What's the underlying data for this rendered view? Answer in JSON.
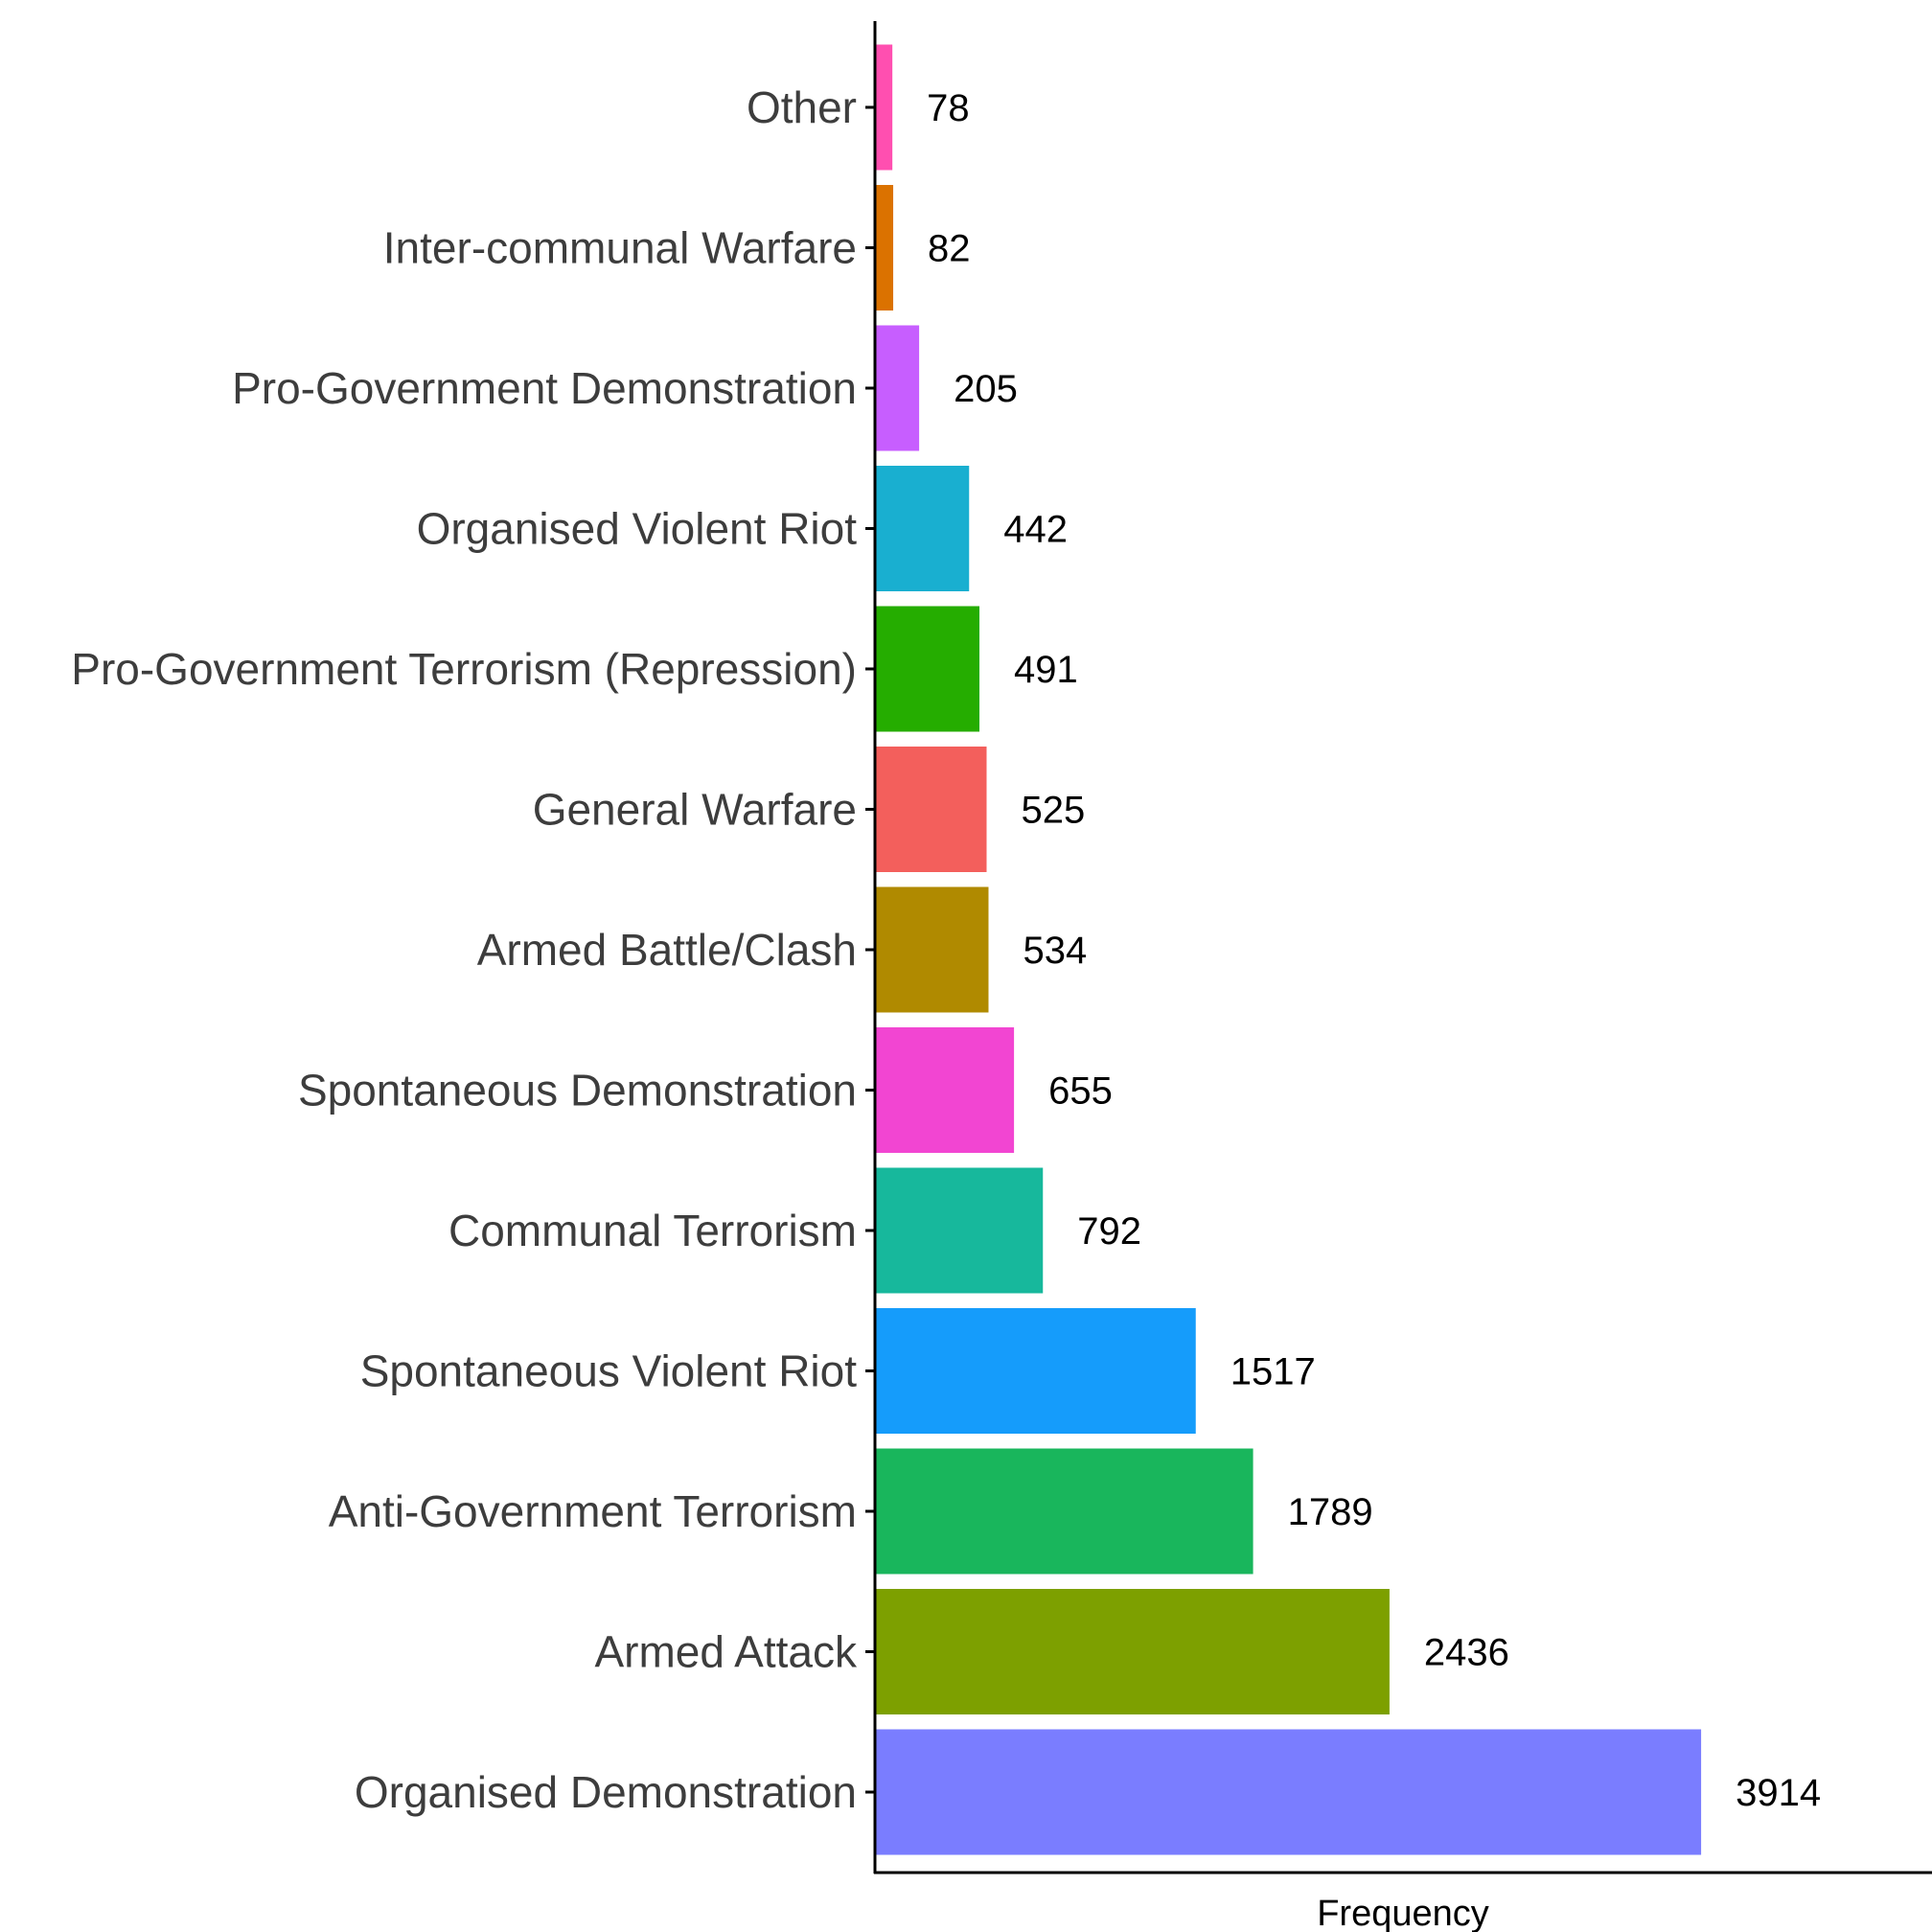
{
  "chart_data": {
    "type": "bar",
    "orientation": "horizontal",
    "xlabel": "Frequency",
    "ylabel": "",
    "xlim": [
      0,
      5000
    ],
    "grid": false,
    "legend": "none",
    "categories": [
      "Other",
      "Inter-communal Warfare",
      "Pro-Government Demonstration",
      "Organised Violent Riot",
      "Pro-Government Terrorism (Repression)",
      "General Warfare",
      "Armed Battle/Clash",
      "Spontaneous Demonstration",
      "Communal Terrorism",
      "Spontaneous Violent Riot",
      "Anti-Government Terrorism",
      "Armed Attack",
      "Organised Demonstration"
    ],
    "values": [
      78,
      82,
      205,
      442,
      491,
      525,
      534,
      655,
      792,
      1517,
      1789,
      2436,
      3914
    ],
    "value_labels": [
      "78",
      "82",
      "205",
      "442",
      "491",
      "525",
      "534",
      "655",
      "792",
      "1517",
      "1789",
      "2436",
      "3914"
    ],
    "colors": [
      "#FF4FB0",
      "#DB7200",
      "#C75EFF",
      "#19AFD0",
      "#25AD00",
      "#F35F5C",
      "#B08A00",
      "#F245D2",
      "#17B89C",
      "#159CFB",
      "#19B65C",
      "#7DA000",
      "#7A7DFF"
    ]
  }
}
